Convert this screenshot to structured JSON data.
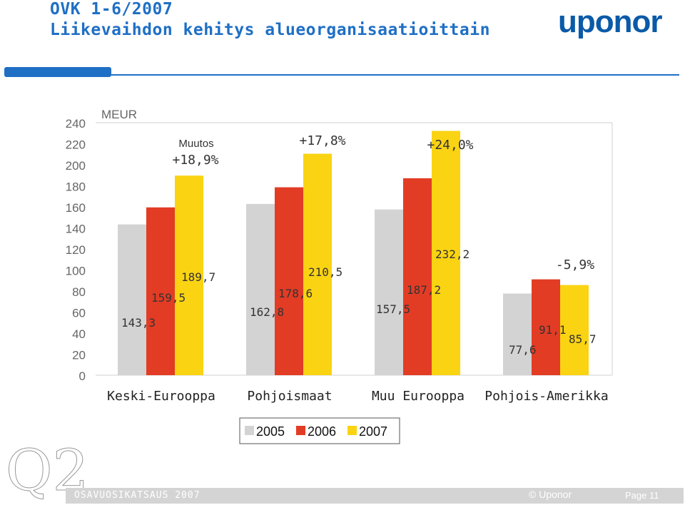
{
  "header": {
    "title_line1": "OVK 1-6/2007",
    "title_line2": "Liikevaihdon kehitys alueorganisaatioittain",
    "logo": "uponor"
  },
  "footer": {
    "section": "OSAVUOSIKATSAUS 2007",
    "copyright": "© Uponor",
    "page": "Page 11",
    "badge": "Q2"
  },
  "colors": {
    "brand_blue": "#1f6fc5",
    "series_2005": "#d3d3d3",
    "series_2006": "#e23c25",
    "series_2007": "#fad313"
  },
  "chart_data": {
    "type": "bar",
    "unit_label": "MEUR",
    "ylim": [
      0,
      240
    ],
    "yticks": [
      "0",
      "20",
      "40",
      "60",
      "80",
      "100",
      "120",
      "140",
      "160",
      "180",
      "200",
      "220",
      "240"
    ],
    "categories": [
      "Keski-Eurooppa",
      "Pohjoismaat",
      "Muu Eurooppa",
      "Pohjois-Amerikka"
    ],
    "series": [
      {
        "name": "2005",
        "values": [
          143.3,
          162.8,
          157.5,
          77.6
        ],
        "labels": [
          "143,3",
          "162,8",
          "157,5",
          "77,6"
        ]
      },
      {
        "name": "2006",
        "values": [
          159.5,
          178.6,
          187.2,
          91.1
        ],
        "labels": [
          "159,5",
          "178,6",
          "187,2",
          "91,1"
        ]
      },
      {
        "name": "2007",
        "values": [
          189.7,
          210.5,
          232.2,
          85.7
        ],
        "labels": [
          "189,7",
          "210,5",
          "232,2",
          "85,7"
        ]
      }
    ],
    "annotations": {
      "change_caption": "Muutos",
      "changes": [
        "+18,9%",
        "+17,8%",
        "+24,0%",
        "-5,9%"
      ]
    },
    "legend": [
      "2005",
      "2006",
      "2007"
    ],
    "legend_position": "bottom-center",
    "grid": false
  }
}
